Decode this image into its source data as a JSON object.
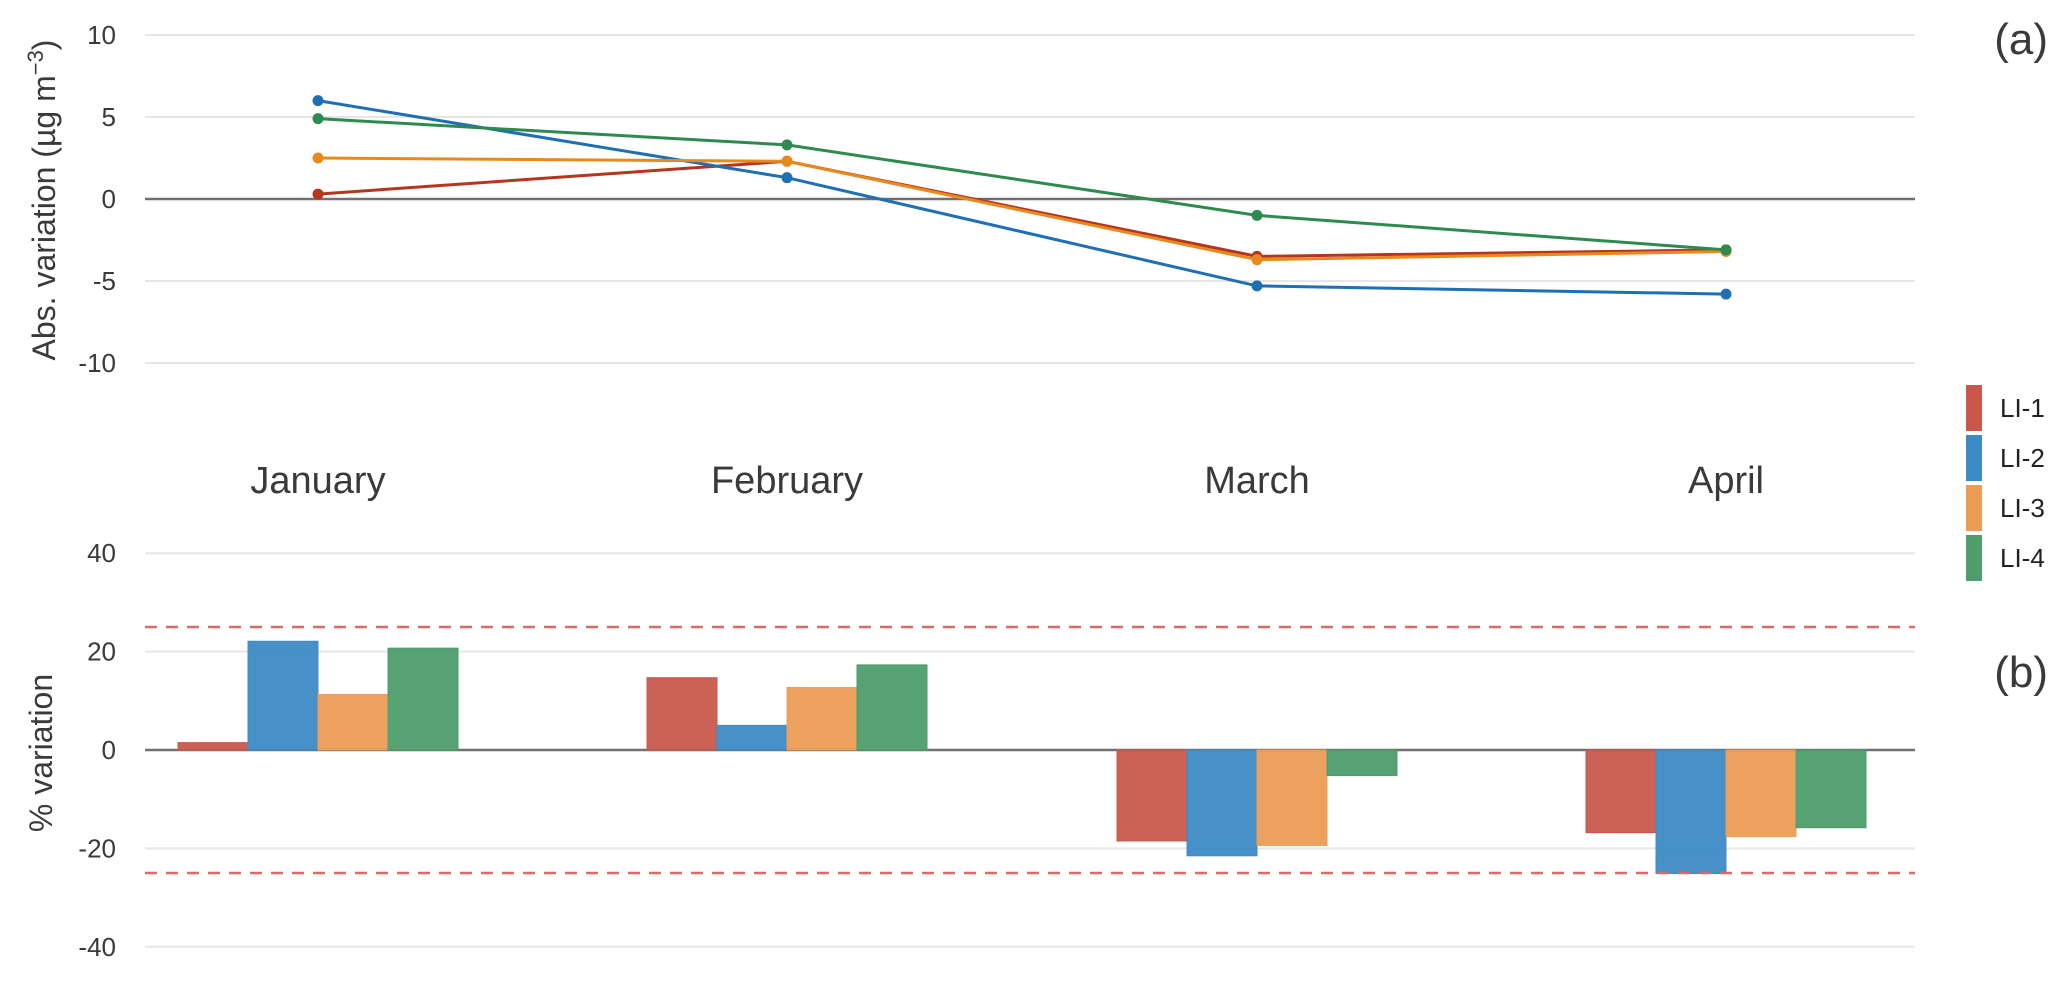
{
  "chart_data": [
    {
      "type": "line",
      "panel_label": "(a)",
      "ylabel": "Abs. variation (µg m",
      "ylabel_superscript": "−3",
      "ylabel_close": ")",
      "ylim": [
        -10,
        10
      ],
      "yticks": [
        "10",
        "5",
        "0",
        "-5",
        "-10"
      ],
      "categories": [
        "January",
        "February",
        "March",
        "April"
      ],
      "grid": true,
      "series": [
        {
          "name": "LI-1",
          "color": "#b5351f",
          "values": [
            0.3,
            2.3,
            -3.5,
            -3.1
          ]
        },
        {
          "name": "LI-2",
          "color": "#1f6fb5",
          "values": [
            6.0,
            1.3,
            -5.3,
            -5.8
          ]
        },
        {
          "name": "LI-3",
          "color": "#e8891e",
          "values": [
            2.5,
            2.3,
            -3.7,
            -3.2
          ]
        },
        {
          "name": "LI-4",
          "color": "#2e8b4f",
          "values": [
            4.9,
            3.3,
            -1.0,
            -3.1
          ]
        }
      ]
    },
    {
      "type": "bar",
      "panel_label": "(b)",
      "ylabel": "% variation",
      "ylim": [
        -40,
        40
      ],
      "yticks": [
        "40",
        "20",
        "0",
        "-20",
        "-40"
      ],
      "categories": [
        "January",
        "February",
        "March",
        "April"
      ],
      "grid": true,
      "reference_lines": [
        25,
        -25
      ],
      "series": [
        {
          "name": "LI-1",
          "color": "#c9584c",
          "values": [
            1.5,
            14.7,
            -18.5,
            -16.8
          ]
        },
        {
          "name": "LI-2",
          "color": "#3d8bc5",
          "values": [
            22.1,
            5.0,
            -21.5,
            -25.1
          ]
        },
        {
          "name": "LI-3",
          "color": "#eb9d55",
          "values": [
            11.3,
            12.7,
            -19.4,
            -17.6
          ]
        },
        {
          "name": "LI-4",
          "color": "#4e9d6c",
          "values": [
            20.7,
            17.3,
            -5.2,
            -15.8
          ]
        }
      ]
    }
  ],
  "legend": {
    "position": "right",
    "items": [
      {
        "label": "LI-1",
        "color": "#c9584c"
      },
      {
        "label": "LI-2",
        "color": "#3d8bc5"
      },
      {
        "label": "LI-3",
        "color": "#eb9d55"
      },
      {
        "label": "LI-4",
        "color": "#4e9d6c"
      }
    ]
  }
}
